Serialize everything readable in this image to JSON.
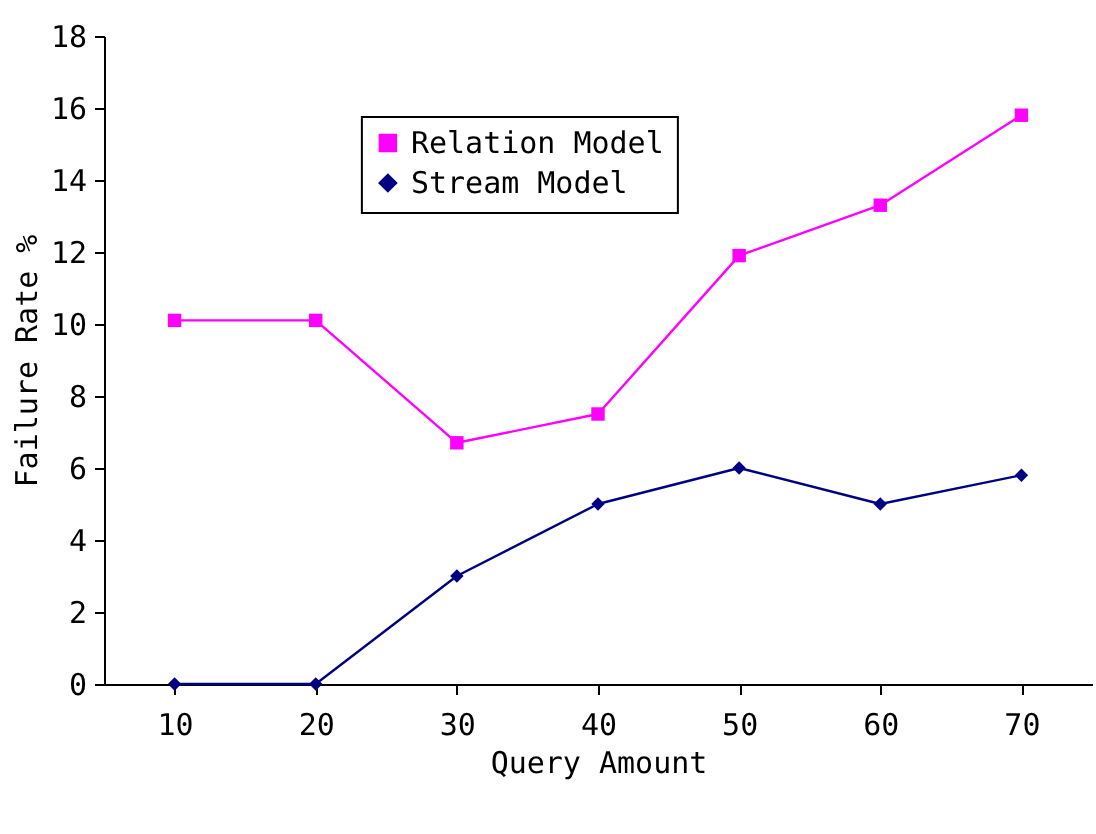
{
  "chart_data": {
    "type": "line",
    "xlabel": "Query Amount",
    "ylabel": "Failure Rate %",
    "categories": [
      "10",
      "20",
      "30",
      "40",
      "50",
      "60",
      "70"
    ],
    "ylim": [
      0,
      18
    ],
    "yticks": [
      0,
      2,
      4,
      6,
      8,
      10,
      12,
      14,
      16,
      18
    ],
    "grid": false,
    "legend": "top",
    "line_style": "solid",
    "series": [
      {
        "name": "Relation Model",
        "color": "#ff00ff",
        "marker": "square",
        "values": [
          10.1,
          10.1,
          6.7,
          7.5,
          11.9,
          13.3,
          15.8
        ]
      },
      {
        "name": "Stream Model",
        "color": "#000080",
        "marker": "diamond",
        "values": [
          0,
          0,
          3,
          5,
          6,
          5,
          5.8
        ]
      }
    ]
  }
}
